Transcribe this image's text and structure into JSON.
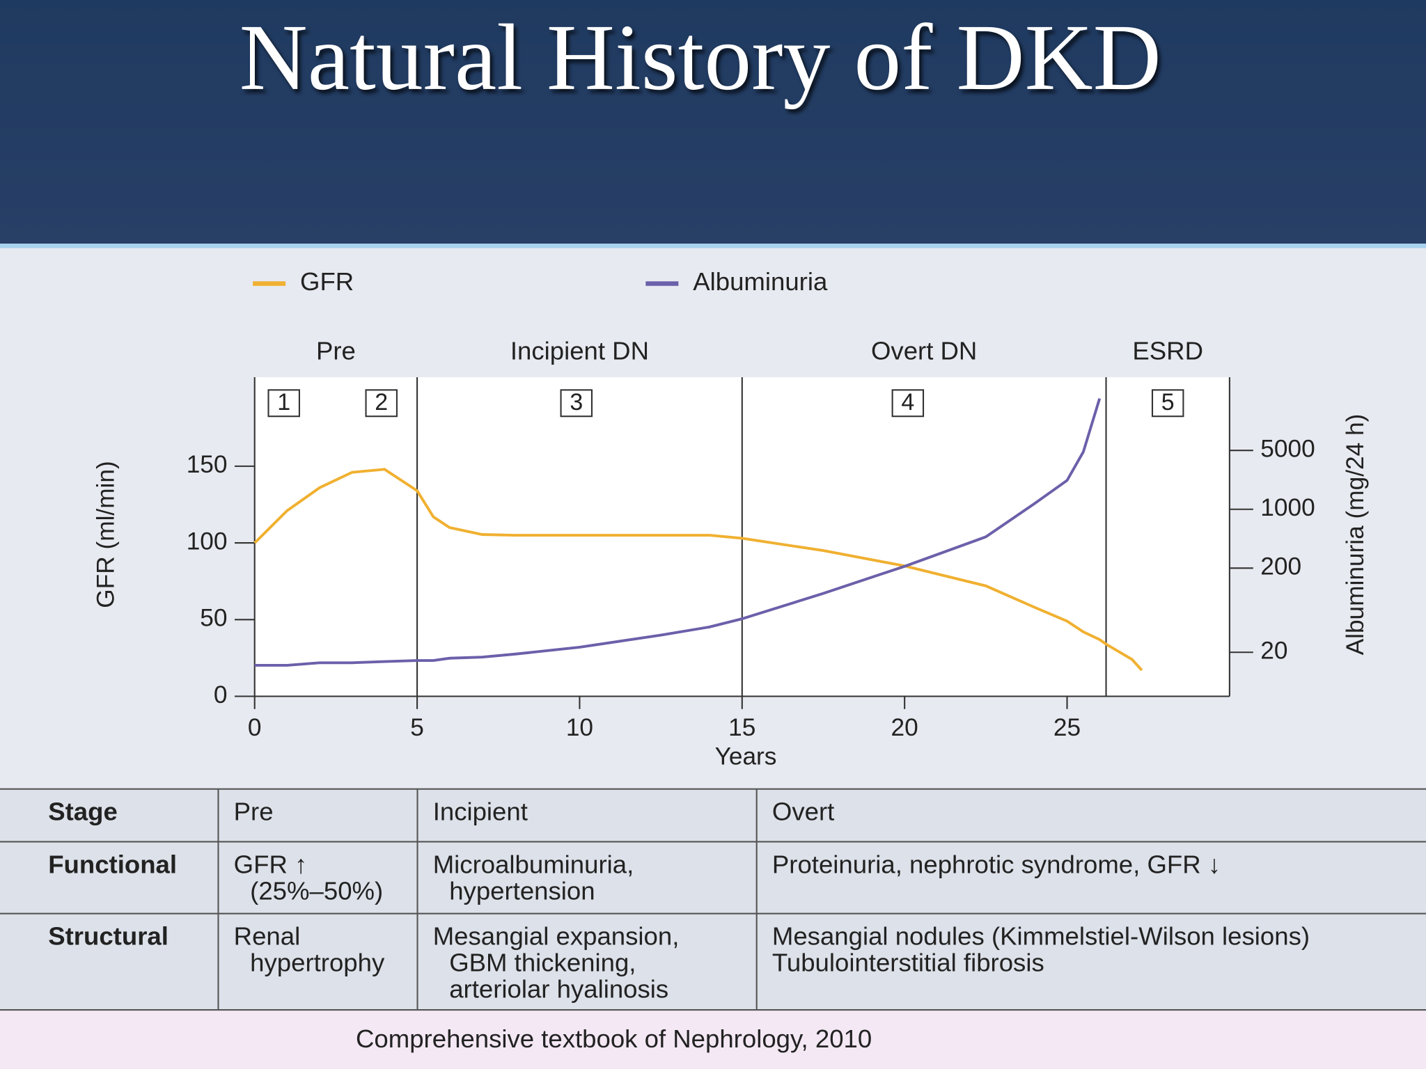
{
  "title": "Natural History of DKD",
  "chart_data": {
    "type": "line",
    "x_label": "Years",
    "y_label": "GFR (ml/min)",
    "y2_label": "Albuminuria (mg/24 h)",
    "xlim": [
      0,
      30
    ],
    "xticks": [
      0,
      5,
      10,
      15,
      20,
      25
    ],
    "ylim": [
      0,
      208
    ],
    "yticks": [
      0,
      50,
      100,
      150
    ],
    "y2lim": [
      6,
      37000
    ],
    "y2scale": "log",
    "y2ticks": [
      20,
      200,
      1000,
      5000
    ],
    "x": [
      0,
      1,
      2,
      3,
      4,
      5,
      5.5,
      6,
      7,
      8,
      10,
      12.5,
      14,
      15,
      17.5,
      20,
      22.5,
      24,
      25,
      25.5,
      26,
      26.2,
      27,
      27.3
    ],
    "series": [
      {
        "name": "GFR",
        "color": "#f0b030",
        "values": [
          100,
          121,
          136,
          146,
          148,
          134,
          117,
          110,
          105.5,
          105,
          105,
          105,
          105,
          103,
          95,
          85,
          72,
          58,
          49,
          42,
          37,
          34,
          24,
          17
        ]
      },
      {
        "name": "Albuminuria",
        "color": "#6b60aa",
        "axis": "y2",
        "values": [
          14,
          14,
          15,
          15,
          15.5,
          16,
          16,
          17,
          17.5,
          19,
          23,
          32,
          40,
          50,
          100,
          210,
          470,
          1170,
          2200,
          4800,
          20700,
          null,
          null,
          null
        ]
      }
    ],
    "stages": [
      {
        "label": "Pre",
        "start": 0,
        "end": 5
      },
      {
        "label": "Incipient DN",
        "start": 5,
        "end": 15
      },
      {
        "label": "Overt DN",
        "start": 15,
        "end": 26.2
      },
      {
        "label": "ESRD",
        "start": 26.2,
        "end": 30
      }
    ],
    "stage_markers": [
      {
        "label": "1",
        "x": 0.9
      },
      {
        "label": "2",
        "x": 3.9
      },
      {
        "label": "3",
        "x": 9.9
      },
      {
        "label": "4",
        "x": 20.1
      },
      {
        "label": "5",
        "x": 28.1
      }
    ]
  },
  "table": {
    "rows": [
      [
        [
          "Stage"
        ],
        [
          "Pre"
        ],
        [
          "Incipient"
        ],
        [
          "Overt"
        ]
      ],
      [
        [
          "Functional"
        ],
        [
          "GFR ↑",
          "(25%–50%)"
        ],
        [
          "Microalbuminuria,",
          "hypertension"
        ],
        [
          "Proteinuria, nephrotic syndrome, GFR ↓"
        ]
      ],
      [
        [
          "Structural"
        ],
        [
          "Renal",
          "hypertrophy"
        ],
        [
          "Mesangial expansion,",
          "GBM thickening,",
          "arteriolar hyalinosis"
        ],
        [
          "Mesangial nodules (Kimmelstiel-Wilson lesions)",
          "Tubulointerstitial fibrosis"
        ]
      ]
    ]
  },
  "source": "Comprehensive textbook of Nephrology, 2010"
}
